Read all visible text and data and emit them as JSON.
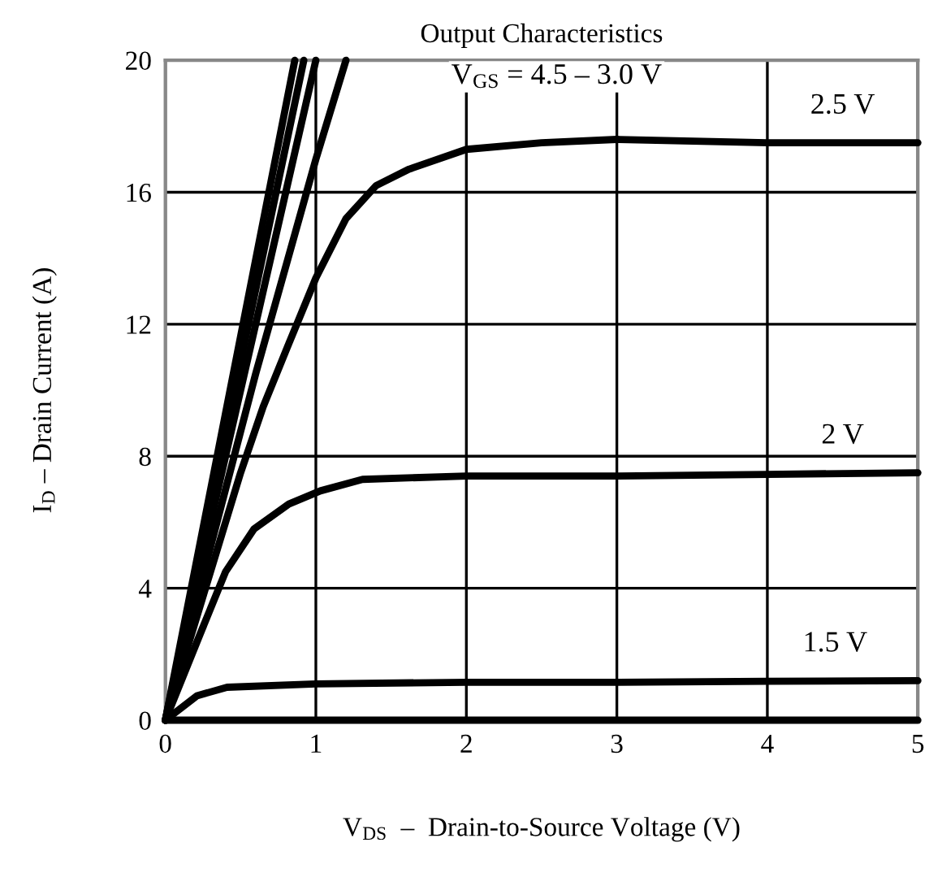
{
  "chart_data": {
    "type": "line",
    "title": "Output Characteristics",
    "xlabel": "V$_{DS}$  –  Drain-to-Source Voltage (V)",
    "ylabel": "I$_{D}$ – Drain Current (A)",
    "series": [
      {
        "color": "#000000",
        "x": [
          0,
          0.86
        ],
        "values": [
          0,
          20
        ]
      },
      {
        "color": "#000000",
        "x": [
          0,
          0.92
        ],
        "values": [
          0,
          20
        ]
      },
      {
        "color": "#000000",
        "x": [
          0,
          1.0
        ],
        "values": [
          0,
          20
        ]
      },
      {
        "color": "#000000",
        "x": [
          0,
          0.6,
          1.0,
          1.2
        ],
        "values": [
          0,
          10.5,
          17.0,
          20
        ]
      },
      {
        "color": "#000000",
        "x": [
          0,
          0.2,
          0.36,
          0.5,
          0.65,
          0.81,
          1.0,
          1.2,
          1.4,
          1.62,
          2,
          2.5,
          3,
          4,
          5
        ],
        "values": [
          0,
          3.0,
          5.4,
          7.5,
          9.5,
          11.3,
          13.4,
          15.2,
          16.2,
          16.7,
          17.3,
          17.5,
          17.6,
          17.5,
          17.5
        ]
      },
      {
        "color": "#000000",
        "x": [
          0,
          0.23,
          0.4,
          0.59,
          0.82,
          1.03,
          1.31,
          2,
          3,
          4,
          5
        ],
        "values": [
          0,
          2.6,
          4.5,
          5.8,
          6.55,
          6.95,
          7.3,
          7.4,
          7.4,
          7.45,
          7.5
        ]
      },
      {
        "color": "#000000",
        "x": [
          0,
          0.21,
          0.41,
          1,
          2,
          3,
          4,
          5
        ],
        "values": [
          0,
          0.74,
          1.0,
          1.1,
          1.15,
          1.15,
          1.18,
          1.2
        ]
      },
      {
        "color": "#000000",
        "x": [
          0,
          5
        ],
        "values": [
          0,
          0
        ]
      }
    ],
    "xlim": [
      0,
      5
    ],
    "xticks": [
      0,
      1,
      2,
      3,
      4,
      5
    ],
    "ylim": [
      0,
      20
    ],
    "yticks": [
      0,
      4,
      8,
      12,
      16,
      20
    ],
    "grid": true,
    "marker": "none",
    "line_style": "solid",
    "annotations": [
      "V$_{GS}$ = 4.5 – 3.0 V",
      "2.5 V",
      "2 V",
      "1.5 V"
    ]
  }
}
